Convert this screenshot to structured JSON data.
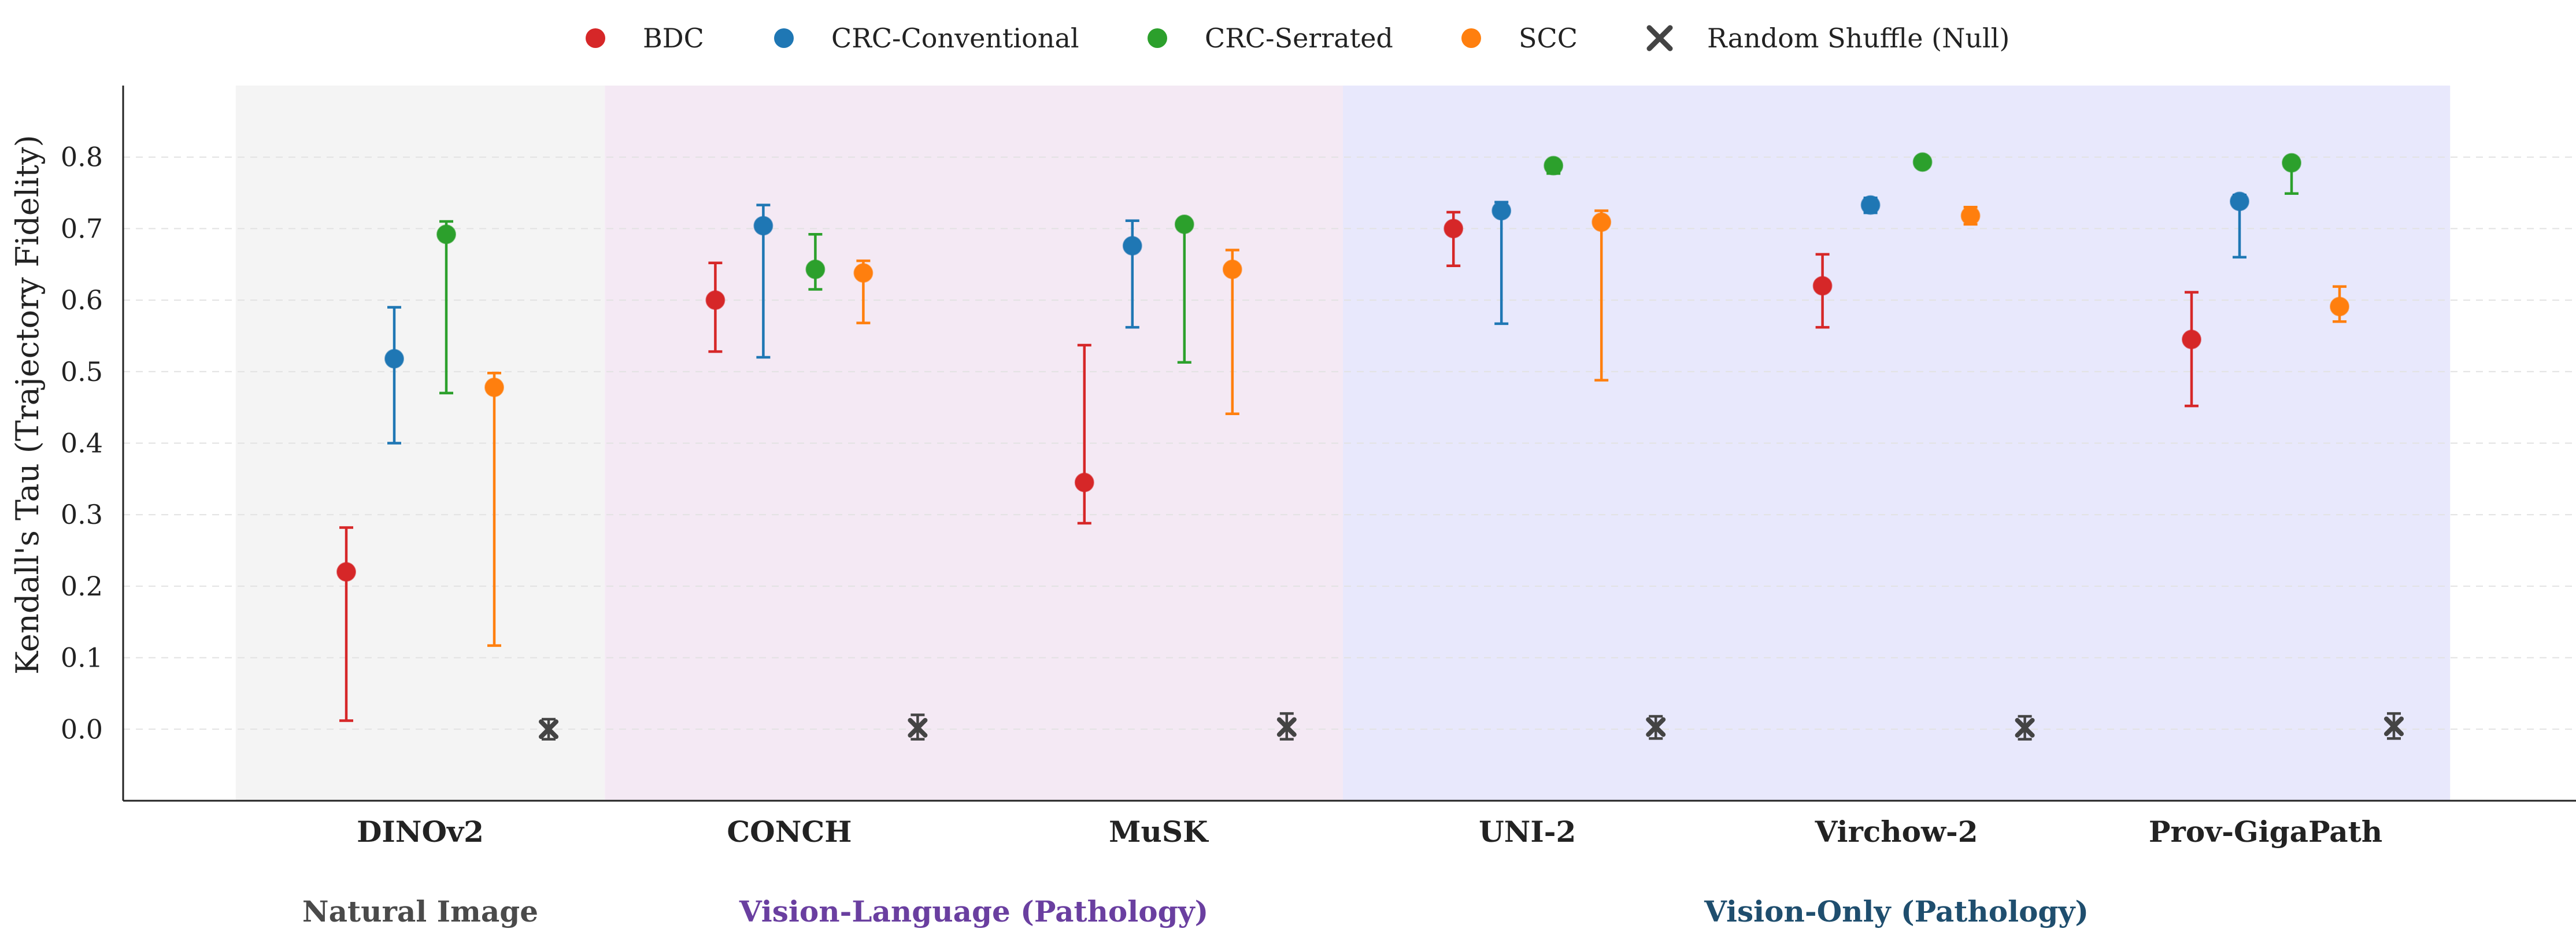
{
  "chart_data": {
    "type": "scatter",
    "title": "",
    "ylabel": "Kendall's Tau (Trajectory Fidelity)",
    "xlabel": "",
    "ylim": [
      -0.1,
      0.9
    ],
    "yticks": [
      "0.0",
      "0.1",
      "0.2",
      "0.3",
      "0.4",
      "0.5",
      "0.6",
      "0.7",
      "0.8"
    ],
    "grid": true,
    "legend_position": "top",
    "categories": [
      "DINOv2",
      "CONCH",
      "MuSK",
      "UNI-2",
      "Virchow-2",
      "Prov-GigaPath"
    ],
    "groups": [
      {
        "label": "Natural Image",
        "color": "#4a4a4a",
        "shade": "#f4f4f4",
        "members": [
          0
        ]
      },
      {
        "label": "Vision-Language (Pathology)",
        "color": "#6a3fa0",
        "shade": "#f4e9f4",
        "members": [
          1,
          2
        ]
      },
      {
        "label": "Vision-Only (Pathology)",
        "color": "#1f4e6e",
        "shade": "#e8e8fc",
        "members": [
          3,
          4,
          5
        ]
      }
    ],
    "series": [
      {
        "name": "BDC",
        "color": "#d62728",
        "marker": "circle",
        "values": [
          0.22,
          0.6,
          0.345,
          0.7,
          0.62,
          0.545
        ],
        "lower": [
          0.012,
          0.528,
          0.288,
          0.648,
          0.562,
          0.452
        ],
        "upper": [
          0.282,
          0.652,
          0.537,
          0.723,
          0.664,
          0.611
        ]
      },
      {
        "name": "CRC-Conventional",
        "color": "#1f77b4",
        "marker": "circle",
        "values": [
          0.518,
          0.704,
          0.676,
          0.725,
          0.733,
          0.738
        ],
        "lower": [
          0.4,
          0.52,
          0.562,
          0.567,
          0.722,
          0.66
        ],
        "upper": [
          0.59,
          0.733,
          0.711,
          0.737,
          0.743,
          0.747
        ]
      },
      {
        "name": "CRC-Serrated",
        "color": "#2ca02c",
        "marker": "circle",
        "values": [
          0.692,
          0.643,
          0.706,
          0.788,
          0.793,
          0.792
        ],
        "lower": [
          0.47,
          0.615,
          0.513,
          0.777,
          0.793,
          0.749
        ],
        "upper": [
          0.71,
          0.692,
          0.71,
          0.794,
          0.798,
          0.797
        ]
      },
      {
        "name": "SCC",
        "color": "#ff7f0e",
        "marker": "circle",
        "values": [
          0.478,
          0.638,
          0.643,
          0.709,
          0.718,
          0.591
        ],
        "lower": [
          0.117,
          0.568,
          0.441,
          0.488,
          0.706,
          0.57
        ],
        "upper": [
          0.498,
          0.655,
          0.67,
          0.725,
          0.73,
          0.619
        ]
      },
      {
        "name": "Random Shuffle (Null)",
        "color": "#444444",
        "marker": "x",
        "values": [
          0.0,
          0.002,
          0.003,
          0.003,
          0.002,
          0.004
        ],
        "lower": [
          -0.014,
          -0.014,
          -0.014,
          -0.013,
          -0.014,
          -0.013
        ],
        "upper": [
          0.014,
          0.02,
          0.022,
          0.018,
          0.018,
          0.022
        ]
      }
    ]
  }
}
